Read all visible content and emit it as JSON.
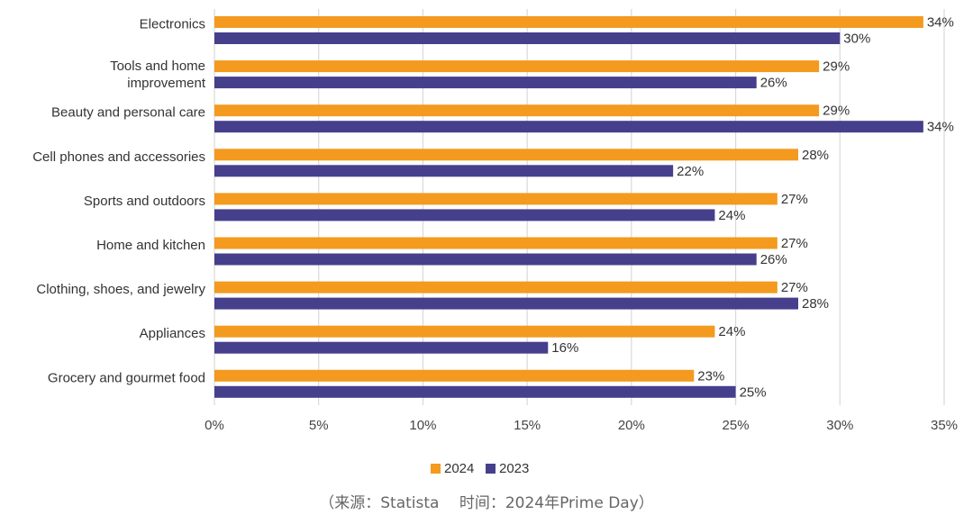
{
  "chart_data": {
    "type": "bar",
    "orientation": "horizontal",
    "categories": [
      [
        "Electronics"
      ],
      [
        "Tools and home",
        "improvement"
      ],
      [
        "Beauty and personal care"
      ],
      [
        "Cell phones and accessories"
      ],
      [
        "Sports and outdoors"
      ],
      [
        "Home and kitchen"
      ],
      [
        "Clothing, shoes, and jewelry"
      ],
      [
        "Appliances"
      ],
      [
        "Grocery and gourmet food"
      ]
    ],
    "series": [
      {
        "name": "2024",
        "color": "#F39A1F",
        "values": [
          34,
          29,
          29,
          28,
          27,
          27,
          27,
          24,
          23
        ]
      },
      {
        "name": "2023",
        "color": "#463F8C",
        "values": [
          30,
          26,
          34,
          22,
          24,
          26,
          28,
          16,
          25
        ]
      }
    ],
    "value_suffix": "%",
    "xlim": [
      0,
      35
    ],
    "xticks": [
      0,
      5,
      10,
      15,
      20,
      25,
      30,
      35
    ],
    "xtick_labels": [
      "0%",
      "5%",
      "10%",
      "15%",
      "20%",
      "25%",
      "30%",
      "35%"
    ],
    "grid": true,
    "legend_position": "bottom-center",
    "source": "（来源：Statista　 时间：2024年Prime Day）"
  }
}
